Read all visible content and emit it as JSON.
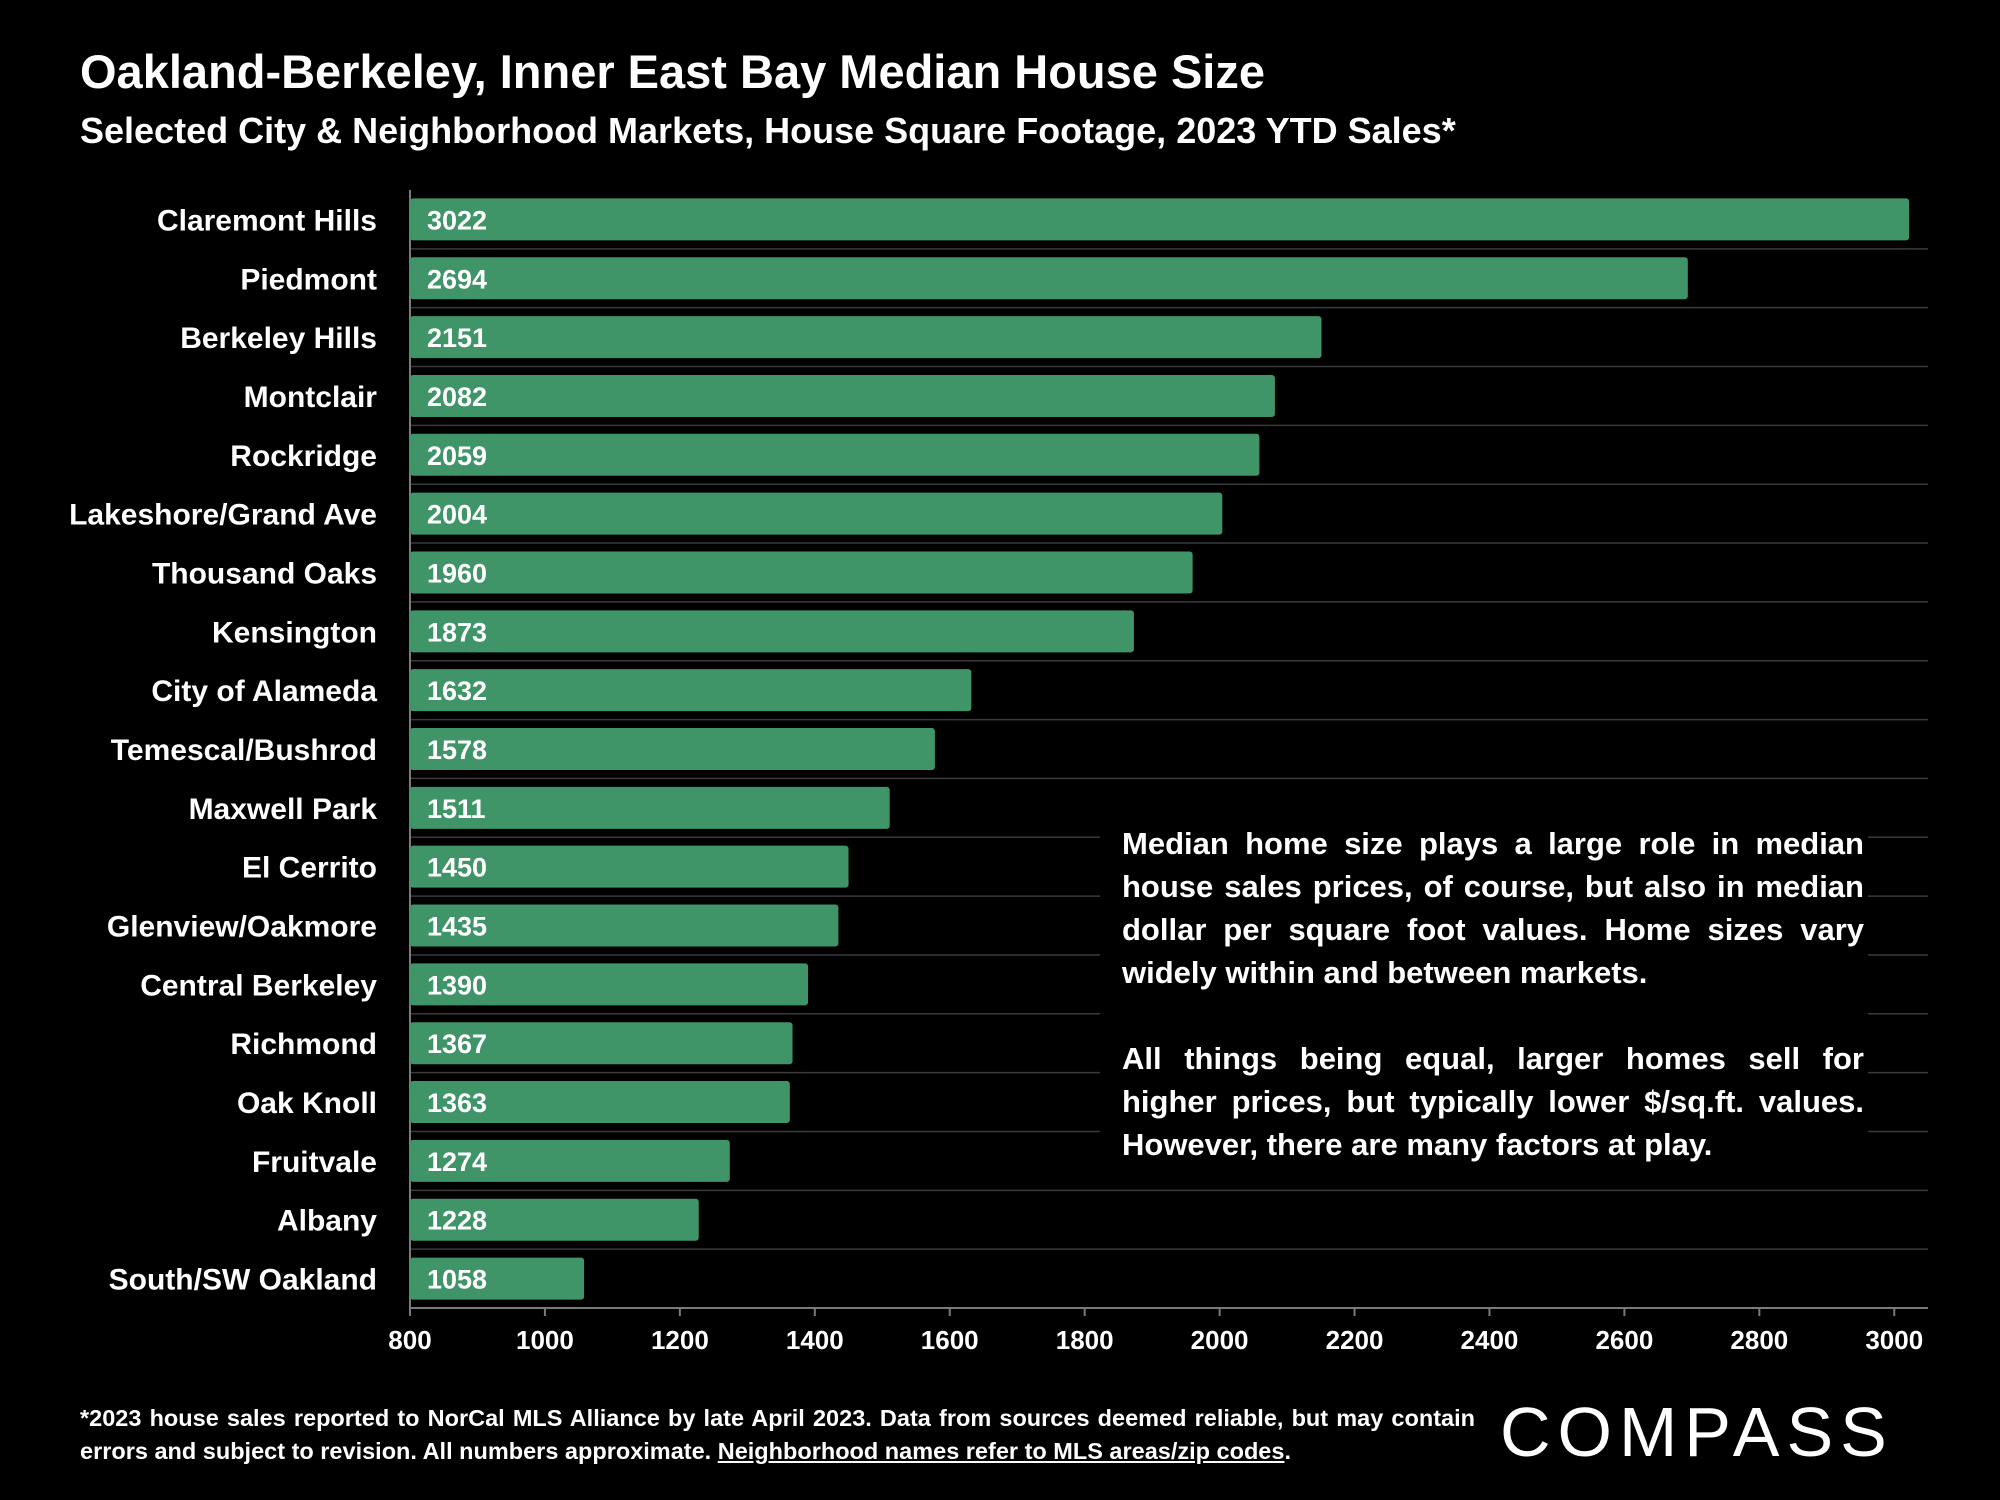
{
  "title": "Oakland-Berkeley, Inner East Bay Median House Size",
  "subtitle": "Selected City & Neighborhood Markets, House Square Footage, 2023 YTD Sales*",
  "colors": {
    "bar": "#3f9468",
    "background": "#000000",
    "text": "#ffffff",
    "grid": "#3a3a3a"
  },
  "chart_data": {
    "type": "bar",
    "orientation": "horizontal",
    "categories": [
      "Claremont Hills",
      "Piedmont",
      "Berkeley Hills",
      "Montclair",
      "Rockridge",
      "Lakeshore/Grand Ave",
      "Thousand Oaks",
      "Kensington",
      "City of Alameda",
      "Temescal/Bushrod",
      "Maxwell Park",
      "El Cerrito",
      "Glenview/Oakmore",
      "Central Berkeley",
      "Richmond",
      "Oak Knoll",
      "Fruitvale",
      "Albany",
      "South/SW Oakland"
    ],
    "values": [
      3022,
      2694,
      2151,
      2082,
      2059,
      2004,
      1960,
      1873,
      1632,
      1578,
      1511,
      1450,
      1435,
      1390,
      1367,
      1363,
      1274,
      1228,
      1058
    ],
    "xlim": [
      800,
      3050
    ],
    "xticks": [
      800,
      1000,
      1200,
      1400,
      1600,
      1800,
      2000,
      2200,
      2400,
      2600,
      2800,
      3000
    ],
    "data_labels": "inside-left",
    "grid": "horizontal separators",
    "legend": "none"
  },
  "annotation": {
    "paragraphs": [
      "Median home size plays a large role in median house sales prices, of course, but also in median dollar per square foot values. Home sizes vary widely within and between markets.",
      "All things being equal, larger homes sell for higher prices, but typically lower $/sq.ft. values. However, there are many factors at play."
    ]
  },
  "footnote": {
    "text": "*2023 house sales reported to NorCal MLS Alliance by late April 2023. Data from sources deemed reliable, but may contain errors and subject to revision. All numbers approximate. ",
    "link": "Neighborhood names refer to MLS areas/zip codes",
    "end": "."
  },
  "brand": {
    "logo_text": "COMPASS"
  }
}
